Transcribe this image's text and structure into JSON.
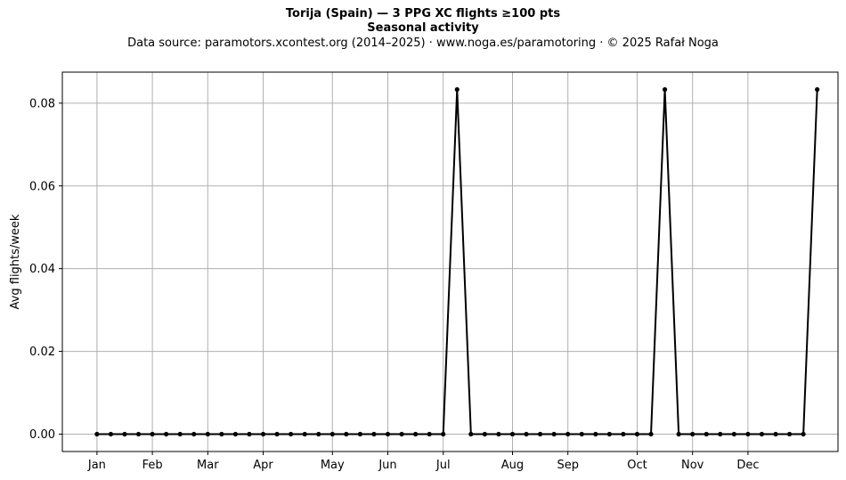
{
  "chart_data": {
    "type": "line",
    "title": "Torija (Spain)  —  3 PPG XC flights ≥100 pts",
    "subtitle": "Seasonal activity",
    "source_note": "Data source: paramotors.xcontest.org (2014–2025)  ·  www.noga.es/paramotoring  ·  © 2025 Rafał Noga",
    "xlabel": "",
    "ylabel": "Avg flights/week",
    "x_unit": "week of year",
    "xlim": [
      -1.5,
      54.5
    ],
    "ylim": [
      -0.0042,
      0.0875
    ],
    "grid": true,
    "x_ticks": [
      {
        "x": 1,
        "label": "Jan"
      },
      {
        "x": 5,
        "label": "Feb"
      },
      {
        "x": 9,
        "label": "Mar"
      },
      {
        "x": 13,
        "label": "Apr"
      },
      {
        "x": 18,
        "label": "May"
      },
      {
        "x": 22,
        "label": "Jun"
      },
      {
        "x": 26,
        "label": "Jul"
      },
      {
        "x": 31,
        "label": "Aug"
      },
      {
        "x": 35,
        "label": "Sep"
      },
      {
        "x": 40,
        "label": "Oct"
      },
      {
        "x": 44,
        "label": "Nov"
      },
      {
        "x": 48,
        "label": "Dec"
      }
    ],
    "y_ticks": [
      {
        "y": 0.0,
        "label": "0.00"
      },
      {
        "y": 0.02,
        "label": "0.02"
      },
      {
        "y": 0.04,
        "label": "0.04"
      },
      {
        "y": 0.06,
        "label": "0.06"
      },
      {
        "y": 0.08,
        "label": "0.08"
      }
    ],
    "series": [
      {
        "color": "#000000",
        "x": [
          1,
          2,
          3,
          4,
          5,
          6,
          7,
          8,
          9,
          10,
          11,
          12,
          13,
          14,
          15,
          16,
          17,
          18,
          19,
          20,
          21,
          22,
          23,
          24,
          25,
          26,
          27,
          28,
          29,
          30,
          31,
          32,
          33,
          34,
          35,
          36,
          37,
          38,
          39,
          40,
          41,
          42,
          43,
          44,
          45,
          46,
          47,
          48,
          49,
          50,
          51,
          52,
          53
        ],
        "y": [
          0,
          0,
          0,
          0,
          0,
          0,
          0,
          0,
          0,
          0,
          0,
          0,
          0,
          0,
          0,
          0,
          0,
          0,
          0,
          0,
          0,
          0,
          0,
          0,
          0,
          0,
          0.0833,
          0,
          0,
          0,
          0,
          0,
          0,
          0,
          0,
          0,
          0,
          0,
          0,
          0,
          0,
          0.0833,
          0,
          0,
          0,
          0,
          0,
          0,
          0,
          0,
          0,
          0,
          0.0833
        ]
      }
    ]
  }
}
